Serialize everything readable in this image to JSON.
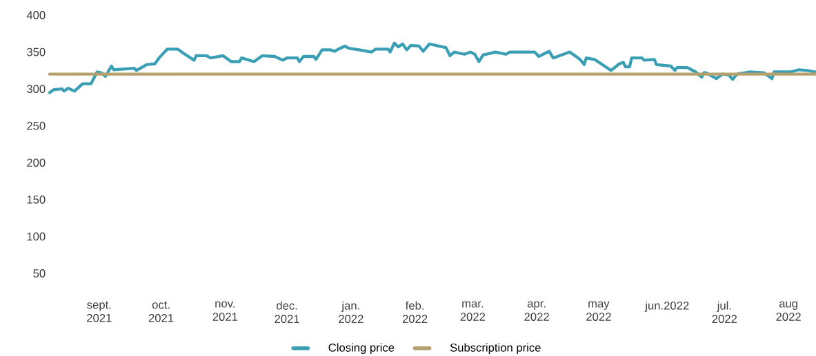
{
  "chart_data": {
    "type": "line",
    "xticks": [
      {
        "value": "2021-09-01",
        "label": "sept. 2021"
      },
      {
        "value": "2021-10-01",
        "label": "oct. 2021"
      },
      {
        "value": "2021-11-01",
        "label": "nov. 2021"
      },
      {
        "value": "2021-12-01",
        "label": "dec. 2021"
      },
      {
        "value": "2022-01-01",
        "label": "jan. 2022"
      },
      {
        "value": "2022-02-01",
        "label": "feb. 2022"
      },
      {
        "value": "2022-03-01",
        "label": "mar. 2022"
      },
      {
        "value": "2022-04-01",
        "label": "apr. 2022"
      },
      {
        "value": "2022-05-01",
        "label": "may 2022"
      },
      {
        "value": "2022-06-01",
        "label": "jun.2022"
      },
      {
        "value": "2022-07-01",
        "label": "jul. 2022"
      },
      {
        "value": "2022-08-01",
        "label": "aug 2022"
      }
    ],
    "xlim": [
      "2021-08-08",
      "2022-08-14"
    ],
    "ylim": [
      50,
      400
    ],
    "yticks": [
      50,
      100,
      150,
      200,
      250,
      300,
      350,
      400
    ],
    "legend": "bottom",
    "marker": "none",
    "line_style": "solid",
    "series": [
      {
        "name": "Closing price",
        "color": "#3a9fb5",
        "x": [
          "2021-08-08",
          "2021-08-10",
          "2021-08-14",
          "2021-08-15",
          "2021-08-17",
          "2021-08-20",
          "2021-08-24",
          "2021-08-28",
          "2021-08-31",
          "2021-09-02",
          "2021-09-04",
          "2021-09-07",
          "2021-09-08",
          "2021-09-18",
          "2021-09-19",
          "2021-09-24",
          "2021-09-28",
          "2021-09-30",
          "2021-10-04",
          "2021-10-09",
          "2021-10-12",
          "2021-10-17",
          "2021-10-18",
          "2021-10-23",
          "2021-10-25",
          "2021-10-31",
          "2021-11-04",
          "2021-11-08",
          "2021-11-09",
          "2021-11-15",
          "2021-11-19",
          "2021-11-25",
          "2021-11-29",
          "2021-12-01",
          "2021-12-06",
          "2021-12-07",
          "2021-12-09",
          "2021-12-14",
          "2021-12-15",
          "2021-12-18",
          "2021-12-22",
          "2021-12-24",
          "2021-12-26",
          "2021-12-29",
          "2021-12-31",
          "2022-01-05",
          "2022-01-11",
          "2022-01-13",
          "2022-01-19",
          "2022-01-20",
          "2022-01-22",
          "2022-01-24",
          "2022-01-26",
          "2022-01-28",
          "2022-01-30",
          "2022-02-03",
          "2022-02-05",
          "2022-02-08",
          "2022-02-11",
          "2022-02-16",
          "2022-02-18",
          "2022-02-20",
          "2022-02-25",
          "2022-02-28",
          "2022-03-02",
          "2022-03-04",
          "2022-03-06",
          "2022-03-12",
          "2022-03-17",
          "2022-03-19",
          "2022-03-31",
          "2022-04-02",
          "2022-04-07",
          "2022-04-09",
          "2022-04-17",
          "2022-04-22",
          "2022-04-24",
          "2022-04-25",
          "2022-04-29",
          "2022-05-07",
          "2022-05-11",
          "2022-05-13",
          "2022-05-14",
          "2022-05-16",
          "2022-05-17",
          "2022-05-22",
          "2022-05-23",
          "2022-05-28",
          "2022-05-29",
          "2022-06-05",
          "2022-06-07",
          "2022-06-08",
          "2022-06-13",
          "2022-06-17",
          "2022-06-20",
          "2022-06-21",
          "2022-06-22",
          "2022-06-27",
          "2022-06-30",
          "2022-07-03",
          "2022-07-05",
          "2022-07-07",
          "2022-07-13",
          "2022-07-20",
          "2022-07-24",
          "2022-07-25",
          "2022-08-02",
          "2022-08-06",
          "2022-08-10",
          "2022-08-14"
        ],
        "values": [
          295,
          299,
          300,
          297,
          301,
          297,
          307,
          307,
          323,
          322,
          317,
          331,
          326,
          328,
          325,
          333,
          334,
          342,
          354,
          354,
          348,
          339,
          345,
          345,
          342,
          345,
          337,
          337,
          342,
          337,
          345,
          344,
          339,
          342,
          342,
          337,
          344,
          344,
          340,
          353,
          353,
          351,
          354,
          358,
          355,
          353,
          350,
          354,
          354,
          350,
          362,
          357,
          361,
          353,
          359,
          358,
          351,
          361,
          359,
          356,
          345,
          350,
          347,
          350,
          347,
          337,
          346,
          350,
          347,
          350,
          350,
          344,
          351,
          342,
          350,
          340,
          333,
          342,
          340,
          325,
          334,
          336,
          330,
          330,
          342,
          342,
          339,
          340,
          333,
          331,
          325,
          329,
          329,
          323,
          316,
          322,
          322,
          314,
          320,
          319,
          313,
          320,
          323,
          322,
          314,
          323,
          323,
          326,
          325,
          323
        ]
      },
      {
        "name": "Subscription price",
        "color": "#b5a06e",
        "x": [
          "2021-08-08",
          "2022-08-14"
        ],
        "values": [
          320,
          320
        ]
      }
    ]
  }
}
